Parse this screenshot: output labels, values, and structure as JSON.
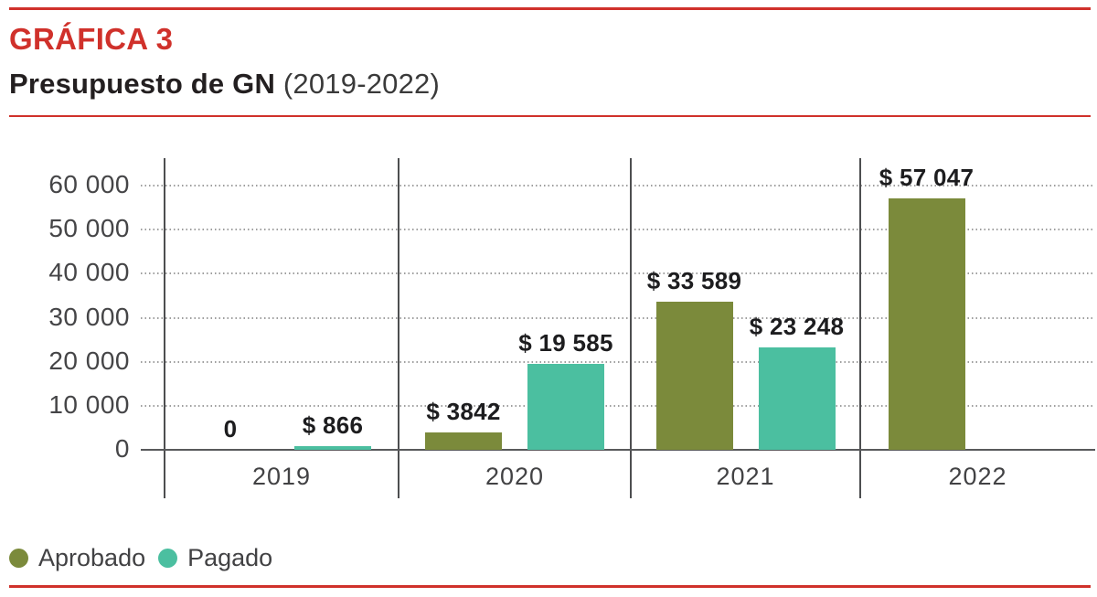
{
  "header": {
    "kicker": "GRÁFICA 3",
    "title": "Presupuesto de GN",
    "title_suffix": "(2019-2022)"
  },
  "colors": {
    "accent_red": "#d0312b",
    "aprobado": "#7b8a3b",
    "pagado": "#4bbfa0",
    "text_dark": "#231f20",
    "text_gray": "#424244"
  },
  "legend": {
    "position": "bottom-left",
    "items": [
      {
        "label": "Aprobado",
        "color": "#7b8a3b"
      },
      {
        "label": "Pagado",
        "color": "#4bbfa0"
      }
    ]
  },
  "chart_data": {
    "type": "bar",
    "title": "Presupuesto de GN (2019-2022)",
    "categories": [
      "2019",
      "2020",
      "2021",
      "2022"
    ],
    "series": [
      {
        "name": "Aprobado",
        "color": "#7b8a3b",
        "values": [
          0,
          3842,
          33589,
          57047
        ],
        "labels": [
          "0",
          "$ 3842",
          "$ 33 589",
          "$ 57 047"
        ]
      },
      {
        "name": "Pagado",
        "color": "#4bbfa0",
        "values": [
          866,
          19585,
          23248,
          null
        ],
        "labels": [
          "$ 866",
          "$ 19 585",
          "$ 23 248",
          null
        ]
      }
    ],
    "xlabel": "",
    "ylabel": "",
    "ylim": [
      0,
      60000
    ],
    "yticks": [
      0,
      10000,
      20000,
      30000,
      40000,
      50000,
      60000
    ],
    "ytick_labels": [
      "0",
      "10 000",
      "20 000",
      "30 000",
      "40 000",
      "50 000",
      "60 000"
    ],
    "grid": "horizontal-dotted",
    "group_separators": true,
    "value_labels": "above-bars"
  }
}
